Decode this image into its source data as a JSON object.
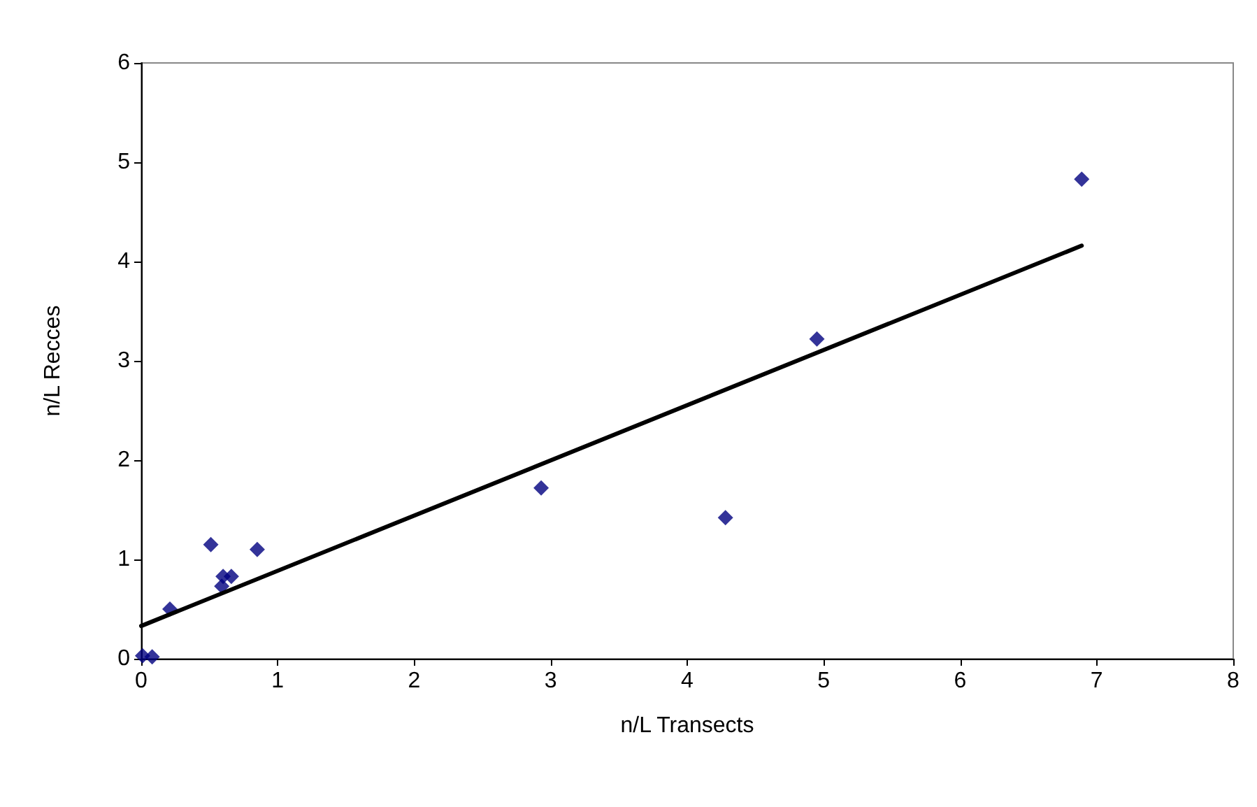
{
  "chart_data": {
    "type": "scatter",
    "xlabel": "n/L Transects",
    "ylabel": "n/L Recces",
    "xlim": [
      0,
      8
    ],
    "ylim": [
      0,
      6
    ],
    "xticks": [
      0,
      1,
      2,
      3,
      4,
      5,
      6,
      7,
      8
    ],
    "yticks": [
      0,
      1,
      2,
      3,
      4,
      5,
      6
    ],
    "grid": false,
    "marker": "diamond",
    "series": [
      {
        "color": "#000080",
        "x": [
          0.01,
          0.08,
          0.21,
          0.51,
          0.59,
          0.6,
          0.66,
          0.85,
          2.93,
          4.28,
          4.95,
          6.89
        ],
        "values": [
          0.03,
          0.02,
          0.5,
          1.15,
          0.73,
          0.83,
          0.83,
          1.1,
          1.72,
          1.42,
          3.22,
          4.83
        ]
      },
      {
        "type": "line",
        "color": "#000000",
        "x": [
          0,
          6.89
        ],
        "values": [
          0.33,
          4.16
        ],
        "marker": "none",
        "line_style": "solid"
      }
    ]
  }
}
